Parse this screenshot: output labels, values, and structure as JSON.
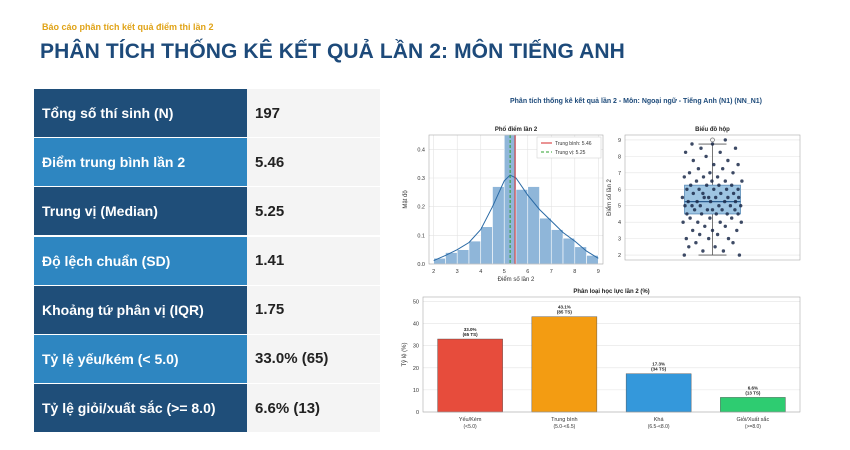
{
  "header": {
    "subtitle": "Báo cáo phân tích kết quả điểm thi lần 2",
    "title": "PHÂN TÍCH THỐNG KÊ KẾT QUẢ LẦN 2: MÔN TIẾNG ANH"
  },
  "stats": [
    {
      "label": "Tổng số thí sinh (N)",
      "value": "197"
    },
    {
      "label": "Điểm trung bình lần 2",
      "value": "5.46"
    },
    {
      "label": "Trung vị (Median)",
      "value": "5.25"
    },
    {
      "label": "Độ lệch chuẩn (SD)",
      "value": "1.41"
    },
    {
      "label": "Khoảng tứ phân vị (IQR)",
      "value": "1.75"
    },
    {
      "label": "Tỷ lệ yếu/kém (< 5.0)",
      "value": "33.0% (65)"
    },
    {
      "label": "Tỷ lệ giỏi/xuất sắc (>= 8.0)",
      "value": "6.6% (13)"
    }
  ],
  "figure_title": "Phân tích thống kê kết quả lần 2 - Môn: Ngoại ngữ - Tiếng Anh (N1) (NN_N1)",
  "chart_data": [
    {
      "type": "histogram",
      "title": "Phổ điểm lần 2",
      "xlabel": "Điểm số lần 2",
      "ylabel": "Mật độ",
      "xlim": [
        1.8,
        9.2
      ],
      "ylim": [
        0,
        0.45
      ],
      "xticks": [
        "2",
        "3",
        "4",
        "5",
        "6",
        "7",
        "8",
        "9"
      ],
      "yticks": [
        "0.0",
        "0.1",
        "0.2",
        "0.3",
        "0.4"
      ],
      "bins": [
        {
          "x0": 2.0,
          "x1": 2.5,
          "density": 0.02
        },
        {
          "x0": 2.5,
          "x1": 3.0,
          "density": 0.04
        },
        {
          "x0": 3.0,
          "x1": 3.5,
          "density": 0.05
        },
        {
          "x0": 3.5,
          "x1": 4.0,
          "density": 0.08
        },
        {
          "x0": 4.0,
          "x1": 4.5,
          "density": 0.13
        },
        {
          "x0": 4.5,
          "x1": 5.0,
          "density": 0.27
        },
        {
          "x0": 5.0,
          "x1": 5.5,
          "density": 0.45
        },
        {
          "x0": 5.5,
          "x1": 6.0,
          "density": 0.26
        },
        {
          "x0": 6.0,
          "x1": 6.5,
          "density": 0.27
        },
        {
          "x0": 6.5,
          "x1": 7.0,
          "density": 0.16
        },
        {
          "x0": 7.0,
          "x1": 7.5,
          "density": 0.12
        },
        {
          "x0": 7.5,
          "x1": 8.0,
          "density": 0.09
        },
        {
          "x0": 8.0,
          "x1": 8.5,
          "density": 0.06
        },
        {
          "x0": 8.5,
          "x1": 9.0,
          "density": 0.03
        }
      ],
      "kde": [
        [
          2.0,
          0.012
        ],
        [
          2.5,
          0.03
        ],
        [
          3.0,
          0.05
        ],
        [
          3.5,
          0.075
        ],
        [
          4.0,
          0.12
        ],
        [
          4.5,
          0.2
        ],
        [
          5.0,
          0.29
        ],
        [
          5.25,
          0.31
        ],
        [
          5.5,
          0.3
        ],
        [
          6.0,
          0.24
        ],
        [
          6.5,
          0.19
        ],
        [
          7.0,
          0.15
        ],
        [
          7.5,
          0.11
        ],
        [
          8.0,
          0.08
        ],
        [
          8.5,
          0.045
        ],
        [
          9.0,
          0.02
        ]
      ],
      "mean": 5.46,
      "median": 5.25,
      "legend": [
        "Trung bình: 5.46",
        "Trung vị: 5.25"
      ],
      "legend_position": "top-right",
      "colors": {
        "bar": "#8fb6d9",
        "kde": "#2a6aa5",
        "mean": "#d62728",
        "median": "#2ca02c"
      }
    },
    {
      "type": "boxplot",
      "title": "Biểu đồ hộp",
      "ylabel": "Điểm số lần 2",
      "ylim": [
        1.7,
        9.3
      ],
      "yticks": [
        "2",
        "3",
        "4",
        "5",
        "6",
        "7",
        "8",
        "9"
      ],
      "box": {
        "whisker_low": 2.0,
        "q1": 4.5,
        "median": 5.25,
        "q3": 6.25,
        "whisker_high": 8.75,
        "flier": 9.0
      },
      "points": [
        [
          0.06,
          2.0
        ],
        [
          0.92,
          2.0
        ],
        [
          0.35,
          2.25
        ],
        [
          0.67,
          2.25
        ],
        [
          0.13,
          2.5
        ],
        [
          0.54,
          2.5
        ],
        [
          0.82,
          2.75
        ],
        [
          0.24,
          2.75
        ],
        [
          0.44,
          3.0
        ],
        [
          0.75,
          3.0
        ],
        [
          0.09,
          3.0
        ],
        [
          0.58,
          3.25
        ],
        [
          0.3,
          3.25
        ],
        [
          0.88,
          3.5
        ],
        [
          0.19,
          3.5
        ],
        [
          0.5,
          3.5
        ],
        [
          0.7,
          3.75
        ],
        [
          0.38,
          3.75
        ],
        [
          0.04,
          4.0
        ],
        [
          0.62,
          4.0
        ],
        [
          0.27,
          4.0
        ],
        [
          0.95,
          4.0
        ],
        [
          0.46,
          4.25
        ],
        [
          0.8,
          4.25
        ],
        [
          0.15,
          4.25
        ],
        [
          0.56,
          4.5
        ],
        [
          0.33,
          4.5
        ],
        [
          0.73,
          4.5
        ],
        [
          0.1,
          4.5
        ],
        [
          0.9,
          4.5
        ],
        [
          0.42,
          4.75
        ],
        [
          0.65,
          4.75
        ],
        [
          0.22,
          4.75
        ],
        [
          0.85,
          4.75
        ],
        [
          0.5,
          4.75
        ],
        [
          0.07,
          5.0
        ],
        [
          0.31,
          5.0
        ],
        [
          0.6,
          5.0
        ],
        [
          0.78,
          5.0
        ],
        [
          0.94,
          5.0
        ],
        [
          0.18,
          5.0
        ],
        [
          0.47,
          5.25
        ],
        [
          0.69,
          5.25
        ],
        [
          0.26,
          5.25
        ],
        [
          0.86,
          5.25
        ],
        [
          0.12,
          5.25
        ],
        [
          0.55,
          5.5
        ],
        [
          0.37,
          5.5
        ],
        [
          0.74,
          5.5
        ],
        [
          0.03,
          5.5
        ],
        [
          0.91,
          5.5
        ],
        [
          0.44,
          5.5
        ],
        [
          0.63,
          5.75
        ],
        [
          0.2,
          5.75
        ],
        [
          0.83,
          5.75
        ],
        [
          0.35,
          5.75
        ],
        [
          0.52,
          6.0
        ],
        [
          0.1,
          6.0
        ],
        [
          0.72,
          6.0
        ],
        [
          0.29,
          6.0
        ],
        [
          0.9,
          6.0
        ],
        [
          0.41,
          6.25
        ],
        [
          0.6,
          6.25
        ],
        [
          0.16,
          6.25
        ],
        [
          0.8,
          6.25
        ],
        [
          0.49,
          6.5
        ],
        [
          0.25,
          6.5
        ],
        [
          0.7,
          6.5
        ],
        [
          0.96,
          6.5
        ],
        [
          0.06,
          6.75
        ],
        [
          0.58,
          6.75
        ],
        [
          0.36,
          6.75
        ],
        [
          0.82,
          7.0
        ],
        [
          0.14,
          7.0
        ],
        [
          0.46,
          7.0
        ],
        [
          0.66,
          7.25
        ],
        [
          0.28,
          7.25
        ],
        [
          0.9,
          7.5
        ],
        [
          0.52,
          7.5
        ],
        [
          0.2,
          7.75
        ],
        [
          0.74,
          7.75
        ],
        [
          0.4,
          8.0
        ],
        [
          0.08,
          8.25
        ],
        [
          0.62,
          8.25
        ],
        [
          0.86,
          8.5
        ],
        [
          0.32,
          8.5
        ],
        [
          0.5,
          8.75
        ],
        [
          0.18,
          8.75
        ],
        [
          0.7,
          9.0
        ]
      ],
      "colors": {
        "box": "#9ec5e2",
        "box_edge": "#5b8cb8",
        "point": "#1b2a4a"
      }
    },
    {
      "type": "bar",
      "title": "Phân loại học lực lần 2 (%)",
      "ylabel": "Tỷ lệ (%)",
      "ylim": [
        0,
        52
      ],
      "yticks": [
        "0",
        "10",
        "20",
        "30",
        "40",
        "50"
      ],
      "categories": [
        {
          "name": "Yếu/Kém",
          "range": "(<5.0)",
          "value": 33.0,
          "label": "33.0%",
          "count": "(65 TS)",
          "color": "#e74c3c"
        },
        {
          "name": "Trung bình",
          "range": "(5.0-<6.5)",
          "value": 43.1,
          "label": "43.1%",
          "count": "(85 TS)",
          "color": "#f39c12"
        },
        {
          "name": "Khá",
          "range": "(6.5-<8.0)",
          "value": 17.3,
          "label": "17.3%",
          "count": "(34 TS)",
          "color": "#3498db"
        },
        {
          "name": "Giỏi/Xuất sắc",
          "range": "(>=8.0)",
          "value": 6.6,
          "label": "6.6%",
          "count": "(13 TS)",
          "color": "#2ecc71"
        }
      ]
    }
  ]
}
